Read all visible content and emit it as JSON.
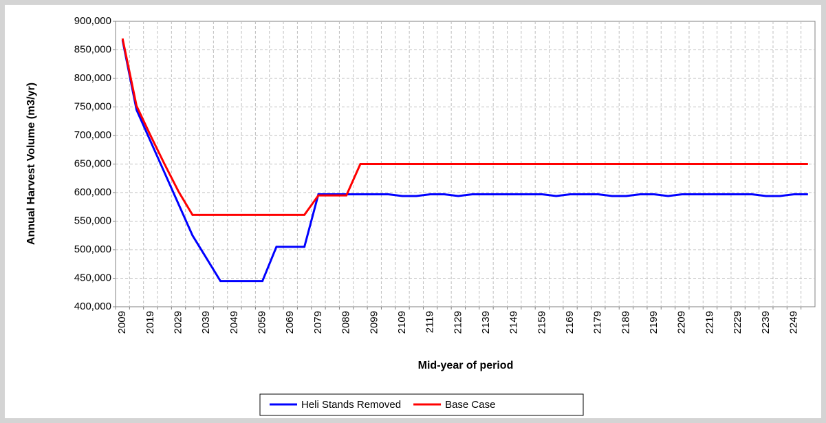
{
  "chart_data": {
    "type": "line",
    "x_label": "Mid-year of period",
    "y_label": "Annual Harvest Volume (m3/yr)",
    "categories": [
      "2009",
      null,
      "2019",
      null,
      "2029",
      null,
      "2039",
      null,
      "2049",
      null,
      "2059",
      null,
      "2069",
      null,
      "2079",
      null,
      "2089",
      null,
      "2099",
      null,
      "2109",
      null,
      "2119",
      null,
      "2129",
      null,
      "2139",
      null,
      "2149",
      null,
      "2159",
      null,
      "2169",
      null,
      "2179",
      null,
      "2189",
      null,
      "2199",
      null,
      "2209",
      null,
      "2219",
      null,
      "2229",
      null,
      "2239",
      null,
      "2249",
      null
    ],
    "series": [
      {
        "name": "Heli Stands Removed",
        "color": "#0000ff",
        "values": [
          867000,
          745000,
          690000,
          635000,
          580000,
          525000,
          485000,
          445000,
          445000,
          445000,
          445000,
          505000,
          505000,
          505000,
          597000,
          597000,
          597000,
          597000,
          597000,
          597000,
          594000,
          594000,
          597000,
          597000,
          594000,
          597000,
          597000,
          597000,
          597000,
          597000,
          597000,
          594000,
          597000,
          597000,
          597000,
          594000,
          594000,
          597000,
          597000,
          594000,
          597000,
          597000,
          597000,
          597000,
          597000,
          597000,
          594000,
          594000,
          597000,
          597000
        ]
      },
      {
        "name": "Base Case",
        "color": "#ff0000",
        "values": [
          870000,
          752000,
          700000,
          650000,
          602000,
          561000,
          561000,
          561000,
          561000,
          561000,
          561000,
          561000,
          561000,
          561000,
          595000,
          595000,
          595000,
          650000,
          650000,
          650000,
          650000,
          650000,
          650000,
          650000,
          650000,
          650000,
          650000,
          650000,
          650000,
          650000,
          650000,
          650000,
          650000,
          650000,
          650000,
          650000,
          650000,
          650000,
          650000,
          650000,
          650000,
          650000,
          650000,
          650000,
          650000,
          650000,
          650000,
          650000,
          650000,
          650000
        ]
      }
    ],
    "ylim": [
      400000,
      900000
    ],
    "yticks": [
      {
        "value": 400000,
        "label": "400,000"
      },
      {
        "value": 450000,
        "label": "450,000"
      },
      {
        "value": 500000,
        "label": "500,000"
      },
      {
        "value": 550000,
        "label": "550,000"
      },
      {
        "value": 600000,
        "label": "600,000"
      },
      {
        "value": 650000,
        "label": "650,000"
      },
      {
        "value": 700000,
        "label": "700,000"
      },
      {
        "value": 750000,
        "label": "750,000"
      },
      {
        "value": 800000,
        "label": "800,000"
      },
      {
        "value": 850000,
        "label": "850,000"
      },
      {
        "value": 900000,
        "label": "900,000"
      }
    ],
    "grid": true,
    "legend": "bottom"
  }
}
